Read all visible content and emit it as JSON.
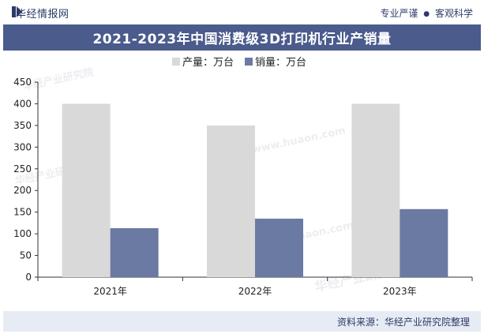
{
  "header": {
    "brand": "华经情报网",
    "slogan_left": "专业严谨",
    "slogan_sep": "●",
    "slogan_right": "客观科学"
  },
  "footer": {
    "source": "资料来源：华经产业研究院整理"
  },
  "colors": {
    "title_bar": "#4a5b8c",
    "production": "#d9d9d9",
    "sales": "#6a7aa3"
  },
  "chart_data": {
    "type": "bar",
    "title": "2021-2023年中国消费级3D打印机行业产销量",
    "categories": [
      "2021年",
      "2022年",
      "2023年"
    ],
    "series": [
      {
        "name": "产量：万台",
        "values": [
          400,
          350,
          400
        ]
      },
      {
        "name": "销量：万台",
        "values": [
          113,
          135,
          157
        ]
      }
    ],
    "ylim": [
      0,
      450
    ],
    "yticks": [
      0,
      50,
      100,
      150,
      200,
      250,
      300,
      350,
      400,
      450
    ],
    "xlabel": "",
    "ylabel": "",
    "legend": "top-center",
    "grid": false
  },
  "watermarks": [
    "华经产业研究院",
    "www.huaon.com"
  ]
}
